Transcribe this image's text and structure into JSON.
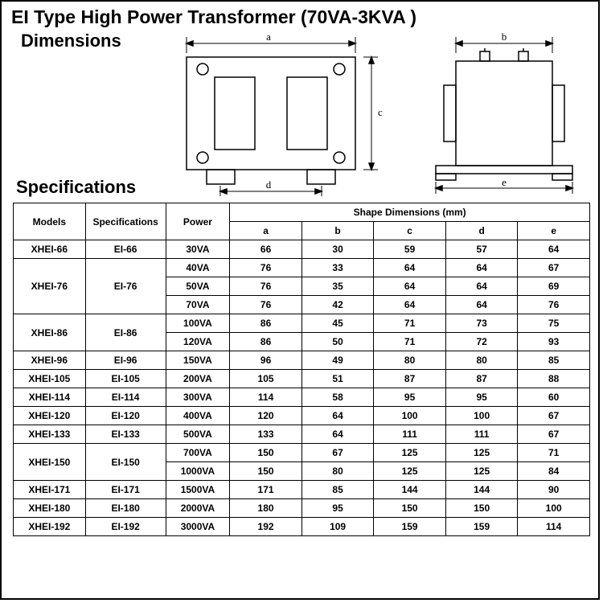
{
  "title": "EI Type High Power Transformer (70VA-3KVA )",
  "labels": {
    "dimensions": "Dimensions",
    "specifications": "Specifications"
  },
  "diagram": {
    "labels": {
      "a": "a",
      "b": "b",
      "c": "c",
      "d": "d",
      "e": "e"
    },
    "strokes": {
      "main": "#000",
      "thin": "#000"
    },
    "fill": "#fff"
  },
  "table": {
    "headers": {
      "models": "Models",
      "specifications": "Specifications",
      "power": "Power",
      "shape_dimensions": "Shape Dimensions (mm)",
      "cols": [
        "a",
        "b",
        "c",
        "d",
        "e"
      ]
    },
    "col_widths": [
      "90px",
      "100px",
      "80px",
      "90px",
      "90px",
      "90px",
      "90px",
      "90px"
    ],
    "rows": [
      {
        "model": "XHEI-66",
        "spec": "EI-66",
        "variants": [
          {
            "power": "30VA",
            "a": 66,
            "b": 30,
            "c": 59,
            "d": 57,
            "e": 64
          }
        ]
      },
      {
        "model": "XHEI-76",
        "spec": "EI-76",
        "variants": [
          {
            "power": "40VA",
            "a": 76,
            "b": 33,
            "c": 64,
            "d": 64,
            "e": 67
          },
          {
            "power": "50VA",
            "a": 76,
            "b": 35,
            "c": 64,
            "d": 64,
            "e": 69
          },
          {
            "power": "70VA",
            "a": 76,
            "b": 42,
            "c": 64,
            "d": 64,
            "e": 76
          }
        ]
      },
      {
        "model": "XHEI-86",
        "spec": "EI-86",
        "variants": [
          {
            "power": "100VA",
            "a": 86,
            "b": 45,
            "c": 71,
            "d": 73,
            "e": 75
          },
          {
            "power": "120VA",
            "a": 86,
            "b": 50,
            "c": 71,
            "d": 72,
            "e": 93
          }
        ]
      },
      {
        "model": "XHEI-96",
        "spec": "EI-96",
        "variants": [
          {
            "power": "150VA",
            "a": 96,
            "b": 49,
            "c": 80,
            "d": 80,
            "e": 85
          }
        ]
      },
      {
        "model": "XHEI-105",
        "spec": "EI-105",
        "variants": [
          {
            "power": "200VA",
            "a": 105,
            "b": 51,
            "c": 87,
            "d": 87,
            "e": 88
          }
        ]
      },
      {
        "model": "XHEI-114",
        "spec": "EI-114",
        "variants": [
          {
            "power": "300VA",
            "a": 114,
            "b": 58,
            "c": 95,
            "d": 95,
            "e": 60
          }
        ]
      },
      {
        "model": "XHEI-120",
        "spec": "EI-120",
        "variants": [
          {
            "power": "400VA",
            "a": 120,
            "b": 64,
            "c": 100,
            "d": 100,
            "e": 67
          }
        ]
      },
      {
        "model": "XHEI-133",
        "spec": "EI-133",
        "variants": [
          {
            "power": "500VA",
            "a": 133,
            "b": 64,
            "c": 111,
            "d": 111,
            "e": 67
          }
        ]
      },
      {
        "model": "XHEI-150",
        "spec": "EI-150",
        "variants": [
          {
            "power": "700VA",
            "a": 150,
            "b": 67,
            "c": 125,
            "d": 125,
            "e": 71
          },
          {
            "power": "1000VA",
            "a": 150,
            "b": 80,
            "c": 125,
            "d": 125,
            "e": 84
          }
        ]
      },
      {
        "model": "XHEI-171",
        "spec": "EI-171",
        "variants": [
          {
            "power": "1500VA",
            "a": 171,
            "b": 85,
            "c": 144,
            "d": 144,
            "e": 90
          }
        ]
      },
      {
        "model": "XHEI-180",
        "spec": "EI-180",
        "variants": [
          {
            "power": "2000VA",
            "a": 180,
            "b": 95,
            "c": 150,
            "d": 150,
            "e": 100
          }
        ]
      },
      {
        "model": "XHEI-192",
        "spec": "EI-192",
        "variants": [
          {
            "power": "3000VA",
            "a": 192,
            "b": 109,
            "c": 159,
            "d": 159,
            "e": 114
          }
        ]
      }
    ]
  }
}
